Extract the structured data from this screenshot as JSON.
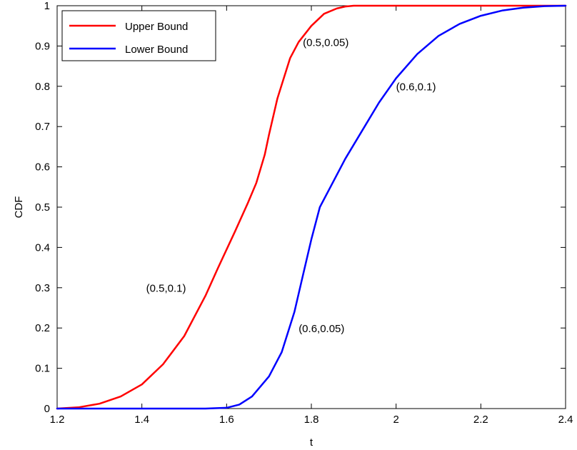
{
  "chart_data": {
    "type": "line",
    "title": "",
    "xlabel": "t",
    "ylabel": "CDF",
    "xlim": [
      1.2,
      2.4
    ],
    "ylim": [
      0,
      1
    ],
    "xticks": [
      1.2,
      1.4,
      1.6,
      1.8,
      2,
      2.2,
      2.4
    ],
    "xtick_labels": [
      "1.2",
      "1.4",
      "1.6",
      "1.8",
      "2",
      "2.2",
      "2.4"
    ],
    "yticks": [
      0,
      0.1,
      0.2,
      0.3,
      0.4,
      0.5,
      0.6,
      0.7,
      0.8,
      0.9,
      1
    ],
    "ytick_labels": [
      "0",
      "0.1",
      "0.2",
      "0.3",
      "0.4",
      "0.5",
      "0.6",
      "0.7",
      "0.8",
      "0.9",
      "1"
    ],
    "grid": false,
    "legend_position": "top-left",
    "series": [
      {
        "name": "Upper Bound",
        "color": "#ff0000",
        "x": [
          1.2,
          1.25,
          1.3,
          1.35,
          1.4,
          1.45,
          1.5,
          1.55,
          1.58,
          1.62,
          1.65,
          1.67,
          1.69,
          1.7,
          1.72,
          1.75,
          1.77,
          1.8,
          1.83,
          1.86,
          1.88,
          1.9,
          2.4
        ],
        "y": [
          0,
          0.003,
          0.012,
          0.03,
          0.06,
          0.11,
          0.18,
          0.28,
          0.35,
          0.44,
          0.51,
          0.56,
          0.63,
          0.68,
          0.77,
          0.87,
          0.91,
          0.95,
          0.98,
          0.993,
          0.998,
          1,
          1
        ]
      },
      {
        "name": "Lower Bound",
        "color": "#0000ff",
        "x": [
          1.2,
          1.55,
          1.6,
          1.63,
          1.66,
          1.7,
          1.73,
          1.76,
          1.78,
          1.8,
          1.82,
          1.85,
          1.88,
          1.92,
          1.96,
          2.0,
          2.05,
          2.1,
          2.15,
          2.2,
          2.25,
          2.3,
          2.35,
          2.4
        ],
        "y": [
          0,
          0,
          0.002,
          0.01,
          0.03,
          0.08,
          0.14,
          0.24,
          0.33,
          0.42,
          0.5,
          0.56,
          0.62,
          0.69,
          0.76,
          0.82,
          0.88,
          0.925,
          0.955,
          0.975,
          0.988,
          0.995,
          0.999,
          1
        ]
      }
    ],
    "annotations": [
      {
        "text": "(0.5,0.05)",
        "x": 1.78,
        "y": 0.9
      },
      {
        "text": "(0.5,0.1)",
        "x": 1.41,
        "y": 0.29
      },
      {
        "text": "(0.6,0.1)",
        "x": 2.0,
        "y": 0.79
      },
      {
        "text": "(0.6,0.05)",
        "x": 1.77,
        "y": 0.19
      }
    ]
  }
}
